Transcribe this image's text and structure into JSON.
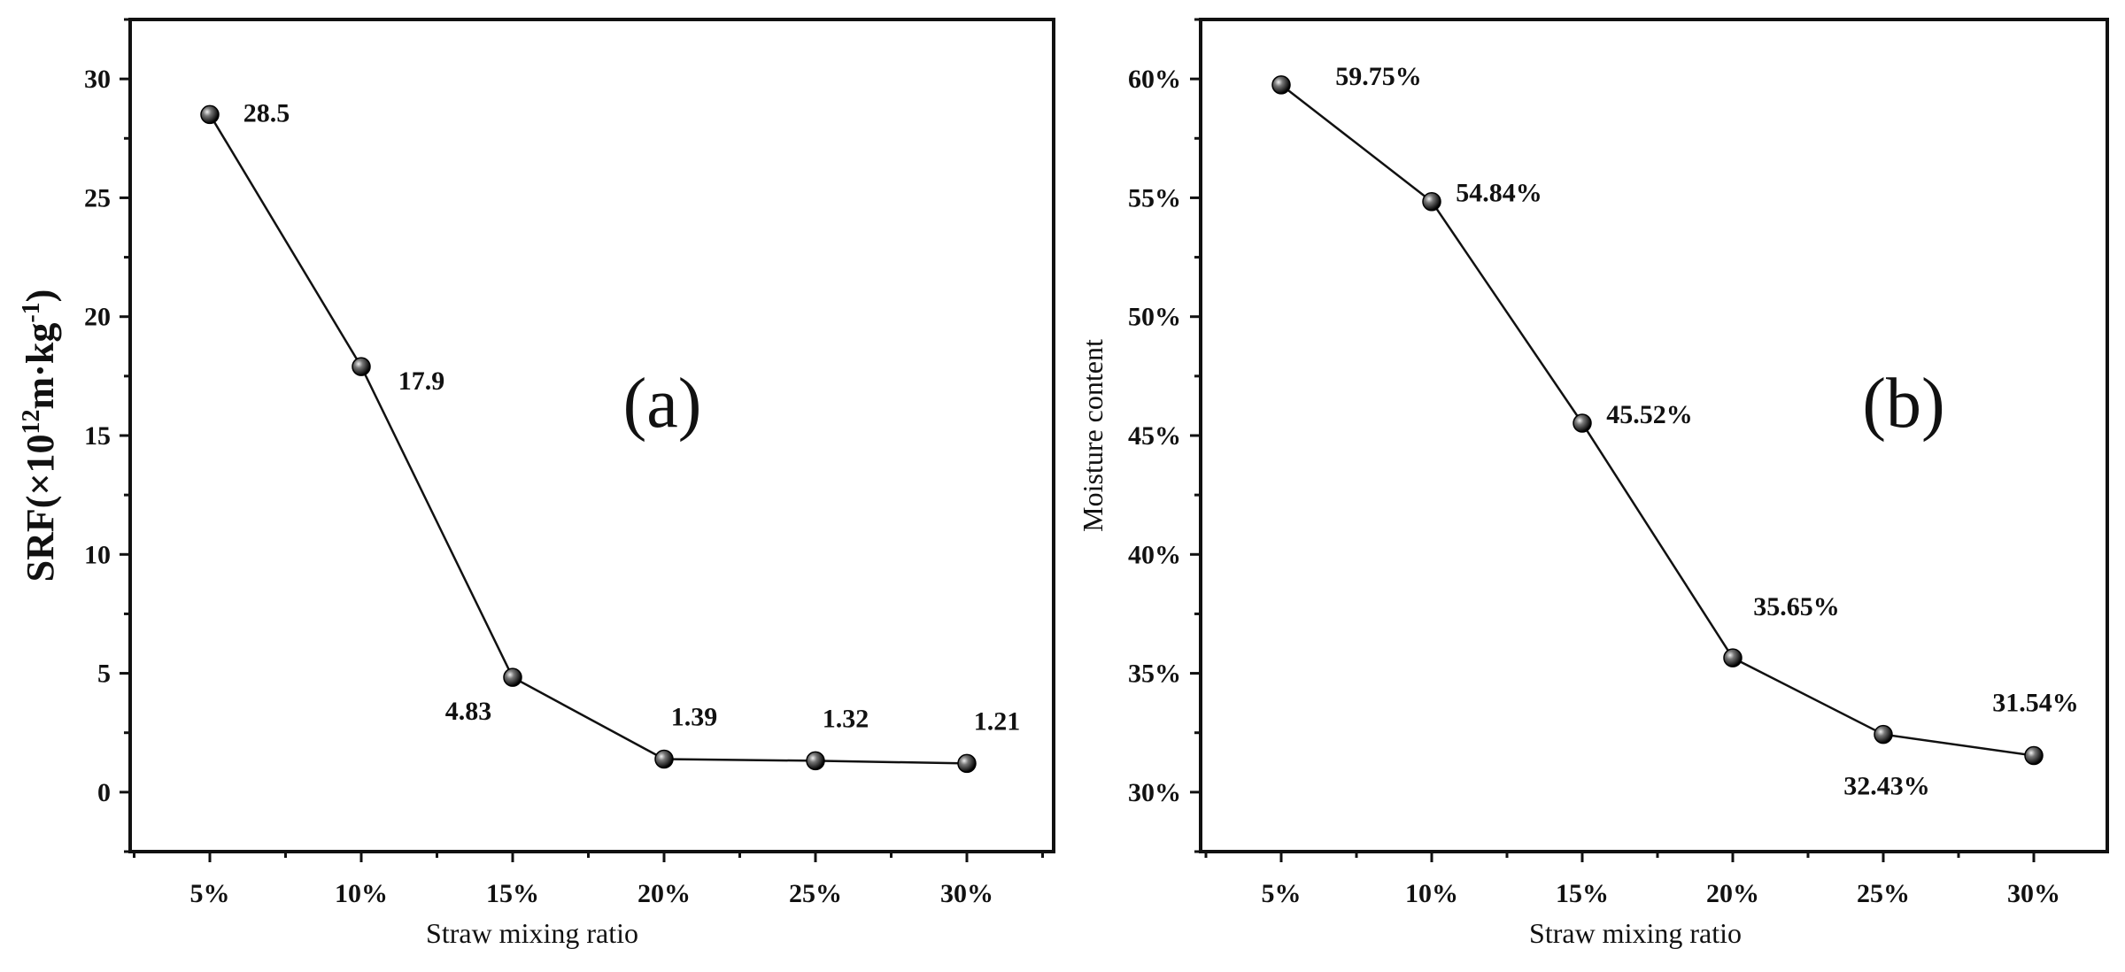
{
  "chart_data": [
    {
      "type": "line",
      "panel_label": "(a)",
      "categories": [
        "5%",
        "10%",
        "15%",
        "20%",
        "25%",
        "30%"
      ],
      "values": [
        28.5,
        17.9,
        4.83,
        1.39,
        1.32,
        1.21
      ],
      "data_labels": [
        "28.5",
        "17.9",
        "4.83",
        "1.39",
        "1.32",
        "1.21"
      ],
      "xlabel": "Straw mixing ratio",
      "ylabel": "SRF(×10",
      "ylabel_sup": "12",
      "ylabel_unit": "m·kg",
      "ylabel_unit_sup": "-1",
      "ylabel_close": ")",
      "yticks": [
        0,
        5,
        10,
        15,
        20,
        25,
        30
      ],
      "ytick_labels": [
        "0",
        "5",
        "10",
        "15",
        "20",
        "25",
        "30"
      ],
      "ylim": [
        -2.5,
        32.5
      ],
      "grid": false
    },
    {
      "type": "line",
      "panel_label": "(b)",
      "categories": [
        "5%",
        "10%",
        "15%",
        "20%",
        "25%",
        "30%"
      ],
      "values": [
        59.75,
        54.84,
        45.52,
        35.65,
        32.43,
        31.54
      ],
      "data_labels": [
        "59.75%",
        "54.84%",
        "45.52%",
        "35.65%",
        "32.43%",
        "31.54%"
      ],
      "xlabel": "Straw mixing ratio",
      "ylabel": "Moisture content",
      "yticks": [
        30,
        35,
        40,
        45,
        50,
        55,
        60
      ],
      "ytick_labels": [
        "30%",
        "35%",
        "40%",
        "45%",
        "50%",
        "55%",
        "60%"
      ],
      "ylim": [
        27.5,
        62.5
      ],
      "grid": false
    }
  ]
}
